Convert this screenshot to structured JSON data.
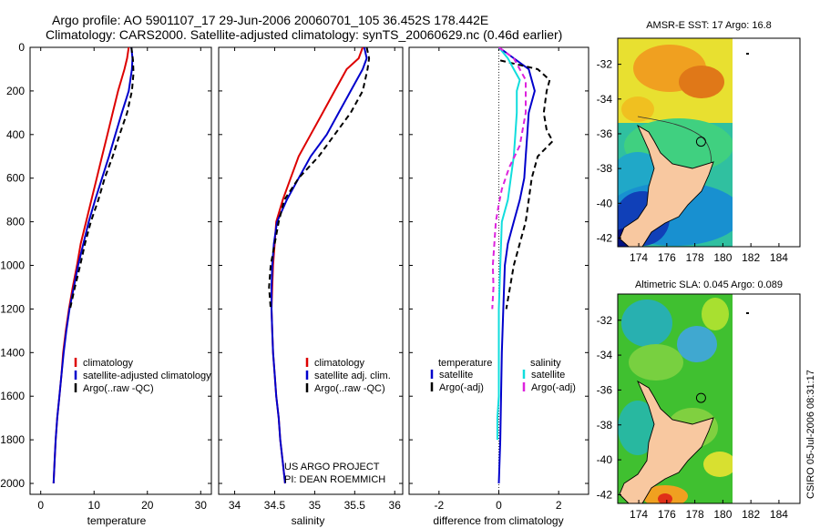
{
  "header": {
    "line1": "Argo profile: AO 5901107_17 29-Jun-2006 20060701_105 36.452S 178.442E",
    "line2": "Climatology: CARS2000. Satellite-adjusted climatology: synTS_20060629.nc (0.46d earlier)"
  },
  "side_stamp": "CSIRO 05-Jul-2006 08:31:17",
  "project": {
    "line1": "US ARGO PROJECT",
    "line2": "PI: DEAN ROEMMICH"
  },
  "colors": {
    "climatology": "#dd0000",
    "satellite": "#0000cc",
    "argo": "#000000",
    "sat_salinity": "#11dddd",
    "argo_salinity": "#dd22dd"
  },
  "chart_data": [
    {
      "type": "line",
      "xlabel": "temperature",
      "ylabel": "",
      "xlim": [
        -2,
        32
      ],
      "ylim": [
        2050,
        0
      ],
      "xticks": [
        "0",
        "10",
        "20",
        "30"
      ],
      "yticks": [
        "0",
        "200",
        "400",
        "600",
        "800",
        "1000",
        "1200",
        "1400",
        "1600",
        "1800",
        "2000"
      ],
      "series": [
        {
          "name": "climatology",
          "color": "#dd0000",
          "dash": "",
          "points": [
            [
              16.5,
              0
            ],
            [
              16.2,
              50
            ],
            [
              15.7,
              100
            ],
            [
              14.5,
              200
            ],
            [
              13.5,
              300
            ],
            [
              12.5,
              400
            ],
            [
              11.5,
              500
            ],
            [
              10.5,
              600
            ],
            [
              9.5,
              700
            ],
            [
              8.5,
              800
            ],
            [
              7.5,
              900
            ],
            [
              6.8,
              1000
            ],
            [
              6.0,
              1100
            ],
            [
              5.3,
              1200
            ],
            [
              4.7,
              1300
            ],
            [
              4.2,
              1400
            ],
            [
              3.9,
              1500
            ],
            [
              3.5,
              1600
            ],
            [
              3.1,
              1700
            ],
            [
              2.8,
              1800
            ],
            [
              2.6,
              1900
            ],
            [
              2.4,
              2000
            ]
          ]
        },
        {
          "name": "satellite-adjusted climatology",
          "color": "#0000cc",
          "dash": "",
          "points": [
            [
              17.0,
              0
            ],
            [
              17.2,
              50
            ],
            [
              17.1,
              100
            ],
            [
              16.5,
              200
            ],
            [
              15.2,
              300
            ],
            [
              14.0,
              400
            ],
            [
              12.8,
              500
            ],
            [
              11.5,
              600
            ],
            [
              10.2,
              700
            ],
            [
              9.0,
              800
            ],
            [
              8.0,
              900
            ],
            [
              7.0,
              1000
            ],
            [
              6.2,
              1100
            ],
            [
              5.4,
              1200
            ],
            [
              4.8,
              1300
            ],
            [
              4.3,
              1400
            ],
            [
              3.9,
              1500
            ],
            [
              3.5,
              1600
            ],
            [
              3.1,
              1700
            ],
            [
              2.8,
              1800
            ],
            [
              2.6,
              1900
            ],
            [
              2.4,
              2000
            ]
          ]
        },
        {
          "name": "Argo(..raw -QC)",
          "color": "#000000",
          "dash": "6,4",
          "points": [
            [
              17.0,
              0
            ],
            [
              17.3,
              60
            ],
            [
              17.4,
              120
            ],
            [
              17.1,
              200
            ],
            [
              16.2,
              300
            ],
            [
              14.8,
              400
            ],
            [
              13.5,
              500
            ],
            [
              12.0,
              600
            ],
            [
              10.8,
              700
            ],
            [
              9.4,
              800
            ],
            [
              8.3,
              900
            ],
            [
              7.4,
              1000
            ],
            [
              6.4,
              1100
            ],
            [
              5.5,
              1200
            ]
          ]
        }
      ],
      "legend": [
        {
          "label": "climatology",
          "color": "#dd0000",
          "dash": ""
        },
        {
          "label": "satellite-adjusted climatology",
          "color": "#0000cc",
          "dash": ""
        },
        {
          "label": "Argo(..raw -QC)",
          "color": "#000000",
          "dash": "6,4"
        }
      ]
    },
    {
      "type": "line",
      "xlabel": "salinity",
      "xlim": [
        33.8,
        36.1
      ],
      "ylim": [
        2050,
        0
      ],
      "xticks": [
        "34",
        "34.5",
        "35",
        "35.5",
        "36"
      ],
      "series": [
        {
          "name": "climatology",
          "color": "#dd0000",
          "dash": "",
          "points": [
            [
              35.6,
              0
            ],
            [
              35.55,
              50
            ],
            [
              35.4,
              100
            ],
            [
              35.25,
              200
            ],
            [
              35.1,
              300
            ],
            [
              34.95,
              400
            ],
            [
              34.8,
              500
            ],
            [
              34.7,
              600
            ],
            [
              34.6,
              700
            ],
            [
              34.52,
              800
            ],
            [
              34.5,
              900
            ],
            [
              34.48,
              1000
            ],
            [
              34.47,
              1100
            ],
            [
              34.46,
              1200
            ],
            [
              34.47,
              1300
            ],
            [
              34.48,
              1400
            ],
            [
              34.5,
              1500
            ],
            [
              34.52,
              1600
            ],
            [
              34.55,
              1700
            ],
            [
              34.57,
              1800
            ],
            [
              34.6,
              1900
            ],
            [
              34.63,
              2000
            ]
          ]
        },
        {
          "name": "satellite adj. clim.",
          "color": "#0000cc",
          "dash": "",
          "points": [
            [
              35.62,
              0
            ],
            [
              35.65,
              50
            ],
            [
              35.6,
              100
            ],
            [
              35.45,
              200
            ],
            [
              35.3,
              300
            ],
            [
              35.15,
              400
            ],
            [
              34.95,
              500
            ],
            [
              34.8,
              600
            ],
            [
              34.65,
              700
            ],
            [
              34.53,
              800
            ],
            [
              34.49,
              900
            ],
            [
              34.47,
              1000
            ],
            [
              34.46,
              1100
            ],
            [
              34.46,
              1200
            ],
            [
              34.47,
              1300
            ],
            [
              34.48,
              1400
            ],
            [
              34.5,
              1500
            ],
            [
              34.52,
              1600
            ],
            [
              34.55,
              1700
            ],
            [
              34.57,
              1800
            ],
            [
              34.6,
              1900
            ],
            [
              34.63,
              2000
            ]
          ]
        },
        {
          "name": "Argo(..raw -QC)",
          "color": "#000000",
          "dash": "6,4",
          "points": [
            [
              35.65,
              0
            ],
            [
              35.68,
              50
            ],
            [
              35.66,
              100
            ],
            [
              35.6,
              200
            ],
            [
              35.45,
              300
            ],
            [
              35.25,
              400
            ],
            [
              35.05,
              500
            ],
            [
              34.8,
              600
            ],
            [
              34.62,
              700
            ],
            [
              34.55,
              800
            ],
            [
              34.5,
              900
            ],
            [
              34.45,
              1000
            ],
            [
              34.43,
              1100
            ],
            [
              34.45,
              1200
            ]
          ]
        }
      ],
      "legend": [
        {
          "label": "climatology",
          "color": "#dd0000",
          "dash": ""
        },
        {
          "label": "satellite adj. clim.",
          "color": "#0000cc",
          "dash": ""
        },
        {
          "label": "Argo(..raw -QC)",
          "color": "#000000",
          "dash": "6,4"
        }
      ]
    },
    {
      "type": "line",
      "xlabel": "difference from climatology",
      "xlim": [
        -3,
        3
      ],
      "ylim": [
        2050,
        0
      ],
      "xticks": [
        "-2",
        "0",
        "2"
      ],
      "legend_titles": [
        "temperature",
        "salinity"
      ],
      "series": [
        {
          "name": "satellite",
          "group": "temperature",
          "color": "#0000cc",
          "dash": "",
          "points": [
            [
              0,
              0
            ],
            [
              0.5,
              50
            ],
            [
              1.0,
              100
            ],
            [
              1.2,
              200
            ],
            [
              1.0,
              300
            ],
            [
              0.95,
              400
            ],
            [
              0.9,
              500
            ],
            [
              0.85,
              600
            ],
            [
              0.7,
              700
            ],
            [
              0.5,
              800
            ],
            [
              0.3,
              900
            ],
            [
              0.2,
              1000
            ],
            [
              0.15,
              1200
            ],
            [
              0.1,
              1400
            ],
            [
              0.05,
              1800
            ],
            [
              0.0,
              2000
            ]
          ]
        },
        {
          "name": "Argo(-adj)",
          "group": "temperature",
          "color": "#000000",
          "dash": "6,4",
          "points": [
            [
              0.05,
              60
            ],
            [
              1.3,
              100
            ],
            [
              1.7,
              150
            ],
            [
              1.6,
              200
            ],
            [
              1.5,
              300
            ],
            [
              1.6,
              380
            ],
            [
              1.8,
              430
            ],
            [
              1.3,
              500
            ],
            [
              1.1,
              600
            ],
            [
              1.0,
              700
            ],
            [
              0.9,
              800
            ],
            [
              0.6,
              950
            ],
            [
              0.5,
              1000
            ],
            [
              0.25,
              1200
            ]
          ]
        },
        {
          "name": "satellite",
          "group": "salinity",
          "color": "#11dddd",
          "dash": "",
          "points": [
            [
              0.0,
              0
            ],
            [
              0.3,
              50
            ],
            [
              0.5,
              100
            ],
            [
              0.7,
              150
            ],
            [
              0.6,
              200
            ],
            [
              0.6,
              300
            ],
            [
              0.55,
              400
            ],
            [
              0.5,
              500
            ],
            [
              0.4,
              600
            ],
            [
              0.3,
              700
            ],
            [
              0.1,
              800
            ],
            [
              0.05,
              1000
            ],
            [
              0.0,
              1200
            ],
            [
              0.0,
              1600
            ],
            [
              -0.05,
              1700
            ],
            [
              -0.05,
              1800
            ]
          ]
        },
        {
          "name": "Argo(-adj)",
          "group": "salinity",
          "color": "#dd22dd",
          "dash": "6,4",
          "points": [
            [
              0.0,
              0
            ],
            [
              0.5,
              50
            ],
            [
              0.9,
              150
            ],
            [
              0.9,
              300
            ],
            [
              0.7,
              450
            ],
            [
              0.35,
              550
            ],
            [
              0.1,
              650
            ],
            [
              0.0,
              720
            ],
            [
              -0.1,
              800
            ],
            [
              -0.15,
              900
            ],
            [
              -0.2,
              1000
            ],
            [
              -0.18,
              1100
            ],
            [
              -0.22,
              1200
            ]
          ]
        }
      ],
      "legend": [
        {
          "label": "satellite",
          "color": "#0000cc",
          "dash": ""
        },
        {
          "label": "Argo(-adj)",
          "color": "#000000",
          "dash": "6,4"
        },
        {
          "label": "satellite",
          "color": "#11dddd",
          "dash": ""
        },
        {
          "label": "Argo(-adj)",
          "color": "#dd22dd",
          "dash": "6,4"
        }
      ]
    },
    {
      "type": "heatmap",
      "title": "AMSR-E SST: 17 Argo: 16.8",
      "xlim": [
        172.5,
        185.5
      ],
      "ylim": [
        -42.5,
        -30.5
      ],
      "xticks": [
        "174",
        "176",
        "178",
        "180",
        "182",
        "184"
      ],
      "yticks": [
        "-32",
        "-34",
        "-36",
        "-38",
        "-40",
        "-42"
      ],
      "marker_lon": 178.442,
      "marker_lat": -36.452
    },
    {
      "type": "heatmap",
      "title": "Altimetric SLA: 0.045 Argo: 0.089",
      "xlim": [
        172.5,
        185.5
      ],
      "ylim": [
        -42.5,
        -30.5
      ],
      "xticks": [
        "174",
        "176",
        "178",
        "180",
        "182",
        "184"
      ],
      "yticks": [
        "-32",
        "-34",
        "-36",
        "-38",
        "-40",
        "-42"
      ],
      "marker_lon": 178.442,
      "marker_lat": -36.452
    }
  ]
}
